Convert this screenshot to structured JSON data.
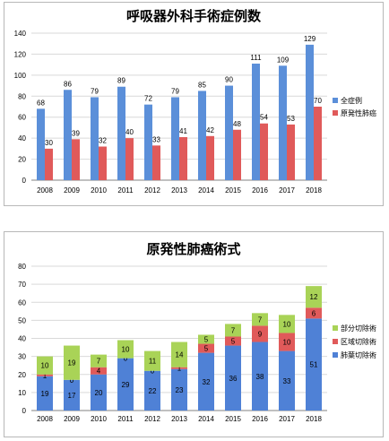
{
  "chart_data": [
    {
      "type": "bar",
      "title": "呼吸器外科手術症例数",
      "categories": [
        "2008",
        "2009",
        "2010",
        "2011",
        "2012",
        "2013",
        "2014",
        "2015",
        "2016",
        "2017",
        "2018"
      ],
      "series": [
        {
          "name": "全症例",
          "values": [
            68,
            86,
            79,
            89,
            72,
            79,
            85,
            90,
            111,
            109,
            129
          ],
          "color": "#5b8fd9"
        },
        {
          "name": "原発性肺癌",
          "values": [
            30,
            39,
            32,
            40,
            33,
            41,
            42,
            48,
            54,
            53,
            70
          ],
          "color": "#e05a5a"
        }
      ],
      "ylim": [
        0,
        140
      ],
      "yticks": [
        0,
        20,
        40,
        60,
        80,
        100,
        120,
        140
      ],
      "grid": true,
      "legend": "right"
    },
    {
      "type": "bar",
      "stacked": true,
      "title": "原発性肺癌術式",
      "categories": [
        "2008",
        "2009",
        "2010",
        "2011",
        "2012",
        "2013",
        "2014",
        "2015",
        "2016",
        "2017",
        "2018"
      ],
      "series": [
        {
          "name": "肺葉切除術",
          "values": [
            19,
            17,
            20,
            29,
            22,
            23,
            32,
            36,
            38,
            33,
            51
          ],
          "color": "#4f81d6"
        },
        {
          "name": "区域切除術",
          "values": [
            1,
            0,
            4,
            0,
            0,
            1,
            5,
            5,
            9,
            10,
            6
          ],
          "color": "#e05a5a"
        },
        {
          "name": "部分切除術",
          "values": [
            10,
            19,
            7,
            10,
            11,
            14,
            5,
            7,
            7,
            10,
            12
          ],
          "color": "#a9d357"
        }
      ],
      "ylim": [
        0,
        80
      ],
      "yticks": [
        0,
        10,
        20,
        30,
        40,
        50,
        60,
        70,
        80
      ],
      "grid": true,
      "legend": "right"
    }
  ]
}
